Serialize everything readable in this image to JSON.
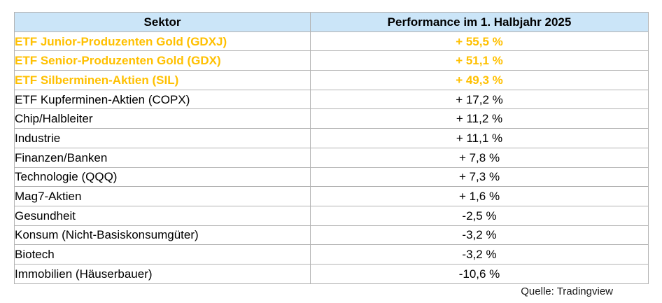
{
  "table": {
    "columns": [
      "Sektor",
      "Performance im 1. Halbjahr 2025"
    ],
    "rows": [
      {
        "sektor": "ETF Junior-Produzenten Gold (GDXJ)",
        "performance": "+ 55,5 %",
        "highlight": true
      },
      {
        "sektor": "ETF Senior-Produzenten Gold (GDX)",
        "performance": "+ 51,1 %",
        "highlight": true
      },
      {
        "sektor": "ETF Silberminen-Aktien (SIL)",
        "performance": "+ 49,3 %",
        "highlight": true
      },
      {
        "sektor": "ETF Kupferminen-Aktien (COPX)",
        "performance": "+ 17,2 %",
        "highlight": false
      },
      {
        "sektor": "Chip/Halbleiter",
        "performance": "+ 11,2 %",
        "highlight": false
      },
      {
        "sektor": "Industrie",
        "performance": "+ 11,1 %",
        "highlight": false
      },
      {
        "sektor": "Finanzen/Banken",
        "performance": "+ 7,8 %",
        "highlight": false
      },
      {
        "sektor": "Technologie (QQQ)",
        "performance": "+ 7,3 %",
        "highlight": false
      },
      {
        "sektor": "Mag7-Aktien",
        "performance": "+ 1,6 %",
        "highlight": false
      },
      {
        "sektor": "Gesundheit",
        "performance": "-2,5 %",
        "highlight": false
      },
      {
        "sektor": "Konsum (Nicht-Basiskonsumgüter)",
        "performance": "-3,2 %",
        "highlight": false
      },
      {
        "sektor": "Biotech",
        "performance": "-3,2 %",
        "highlight": false
      },
      {
        "sektor": "Immobilien (Häuserbauer)",
        "performance": "-10,6 %",
        "highlight": false
      }
    ]
  },
  "source": "Quelle: Tradingview",
  "colors": {
    "header_bg": "#cbe5f8",
    "highlight_gold": "#ffc000",
    "border": "#b3b3b3",
    "text": "#000000"
  },
  "chart_data": {
    "type": "table",
    "title": "Performance im 1. Halbjahr 2025",
    "columns": [
      "Sektor",
      "Performance im 1. Halbjahr 2025"
    ],
    "categories": [
      "ETF Junior-Produzenten Gold (GDXJ)",
      "ETF Senior-Produzenten Gold (GDX)",
      "ETF Silberminen-Aktien (SIL)",
      "ETF Kupferminen-Aktien (COPX)",
      "Chip/Halbleiter",
      "Industrie",
      "Finanzen/Banken",
      "Technologie (QQQ)",
      "Mag7-Aktien",
      "Gesundheit",
      "Konsum (Nicht-Basiskonsumgüter)",
      "Biotech",
      "Immobilien (Häuserbauer)"
    ],
    "values_percent": [
      55.5,
      51.1,
      49.3,
      17.2,
      11.2,
      11.1,
      7.8,
      7.3,
      1.6,
      -2.5,
      -3.2,
      -3.2,
      -10.6
    ],
    "highlighted_rows": [
      0,
      1,
      2
    ],
    "source": "Quelle: Tradingview"
  }
}
